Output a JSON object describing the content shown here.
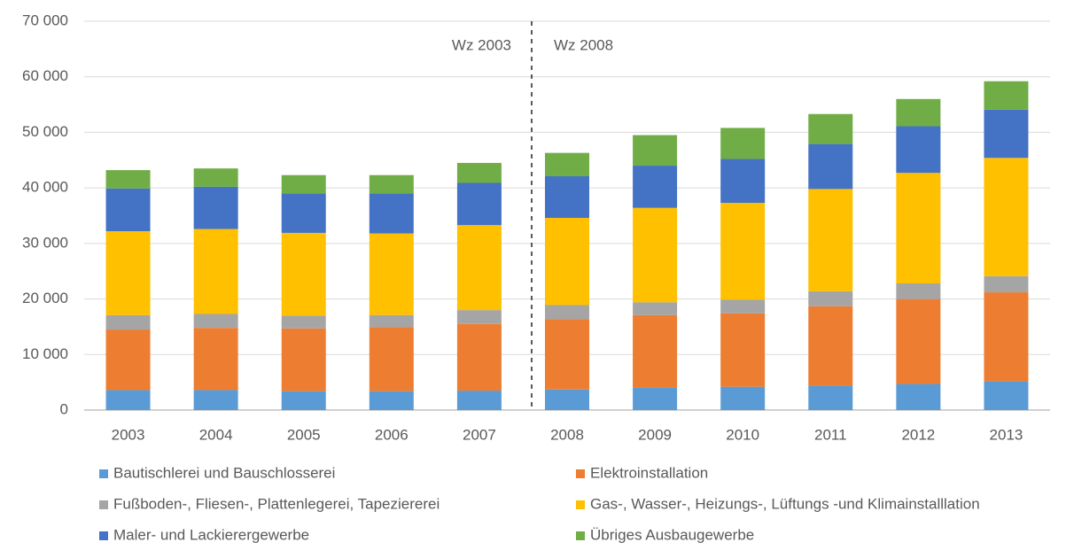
{
  "chart_data": {
    "type": "stacked_bar",
    "categories": [
      "2003",
      "2004",
      "2005",
      "2006",
      "2007",
      "2008",
      "2009",
      "2010",
      "2011",
      "2012",
      "2013"
    ],
    "series": [
      {
        "name": "Bautischlerei und Bauschlosserei",
        "color": "#5b9bd5",
        "values": [
          3600,
          3600,
          3400,
          3400,
          3500,
          3700,
          4000,
          4200,
          4400,
          4700,
          5200
        ]
      },
      {
        "name": "Elektroinstallation",
        "color": "#ed7d31",
        "values": [
          10900,
          11200,
          11300,
          11500,
          12000,
          12700,
          13100,
          13200,
          14300,
          15300,
          16000
        ]
      },
      {
        "name": "Fußboden-, Fliesen-, Plattenlegerei, Tapeziererei",
        "color": "#a5a5a5",
        "values": [
          2600,
          2500,
          2300,
          2200,
          2500,
          2500,
          2300,
          2500,
          2700,
          2800,
          2900
        ]
      },
      {
        "name": "Gas-, Wasser-, Heizungs-, Lüftungs -und Klimainstalllation",
        "color": "#ffc000",
        "values": [
          15100,
          15300,
          14900,
          14700,
          15300,
          15700,
          17000,
          17400,
          18400,
          19900,
          21300
        ]
      },
      {
        "name": "Maler- und Lackierergewerbe",
        "color": "#4472c4",
        "values": [
          7700,
          7600,
          7100,
          7200,
          7600,
          7500,
          7600,
          7900,
          8100,
          8400,
          8700
        ]
      },
      {
        "name": "Übriges Ausbaugewerbe",
        "color": "#70ad47",
        "values": [
          3300,
          3300,
          3300,
          3300,
          3600,
          4200,
          5500,
          5600,
          5400,
          4900,
          5100
        ]
      }
    ],
    "annotations": [
      "Wz 2003",
      "Wz 2008"
    ],
    "ylim": [
      0,
      70000
    ],
    "yticks": [
      0,
      {
        "value": 10000,
        "label": "10 000"
      },
      {
        "value": 20000,
        "label": "20 000"
      },
      {
        "value": 30000,
        "label": "30 000"
      },
      {
        "value": 40000,
        "label": "40 000"
      },
      {
        "value": 50000,
        "label": "50 000"
      },
      {
        "value": 60000,
        "label": "60 000"
      },
      {
        "value": 70000,
        "label": "70 000"
      }
    ],
    "grid": true
  }
}
